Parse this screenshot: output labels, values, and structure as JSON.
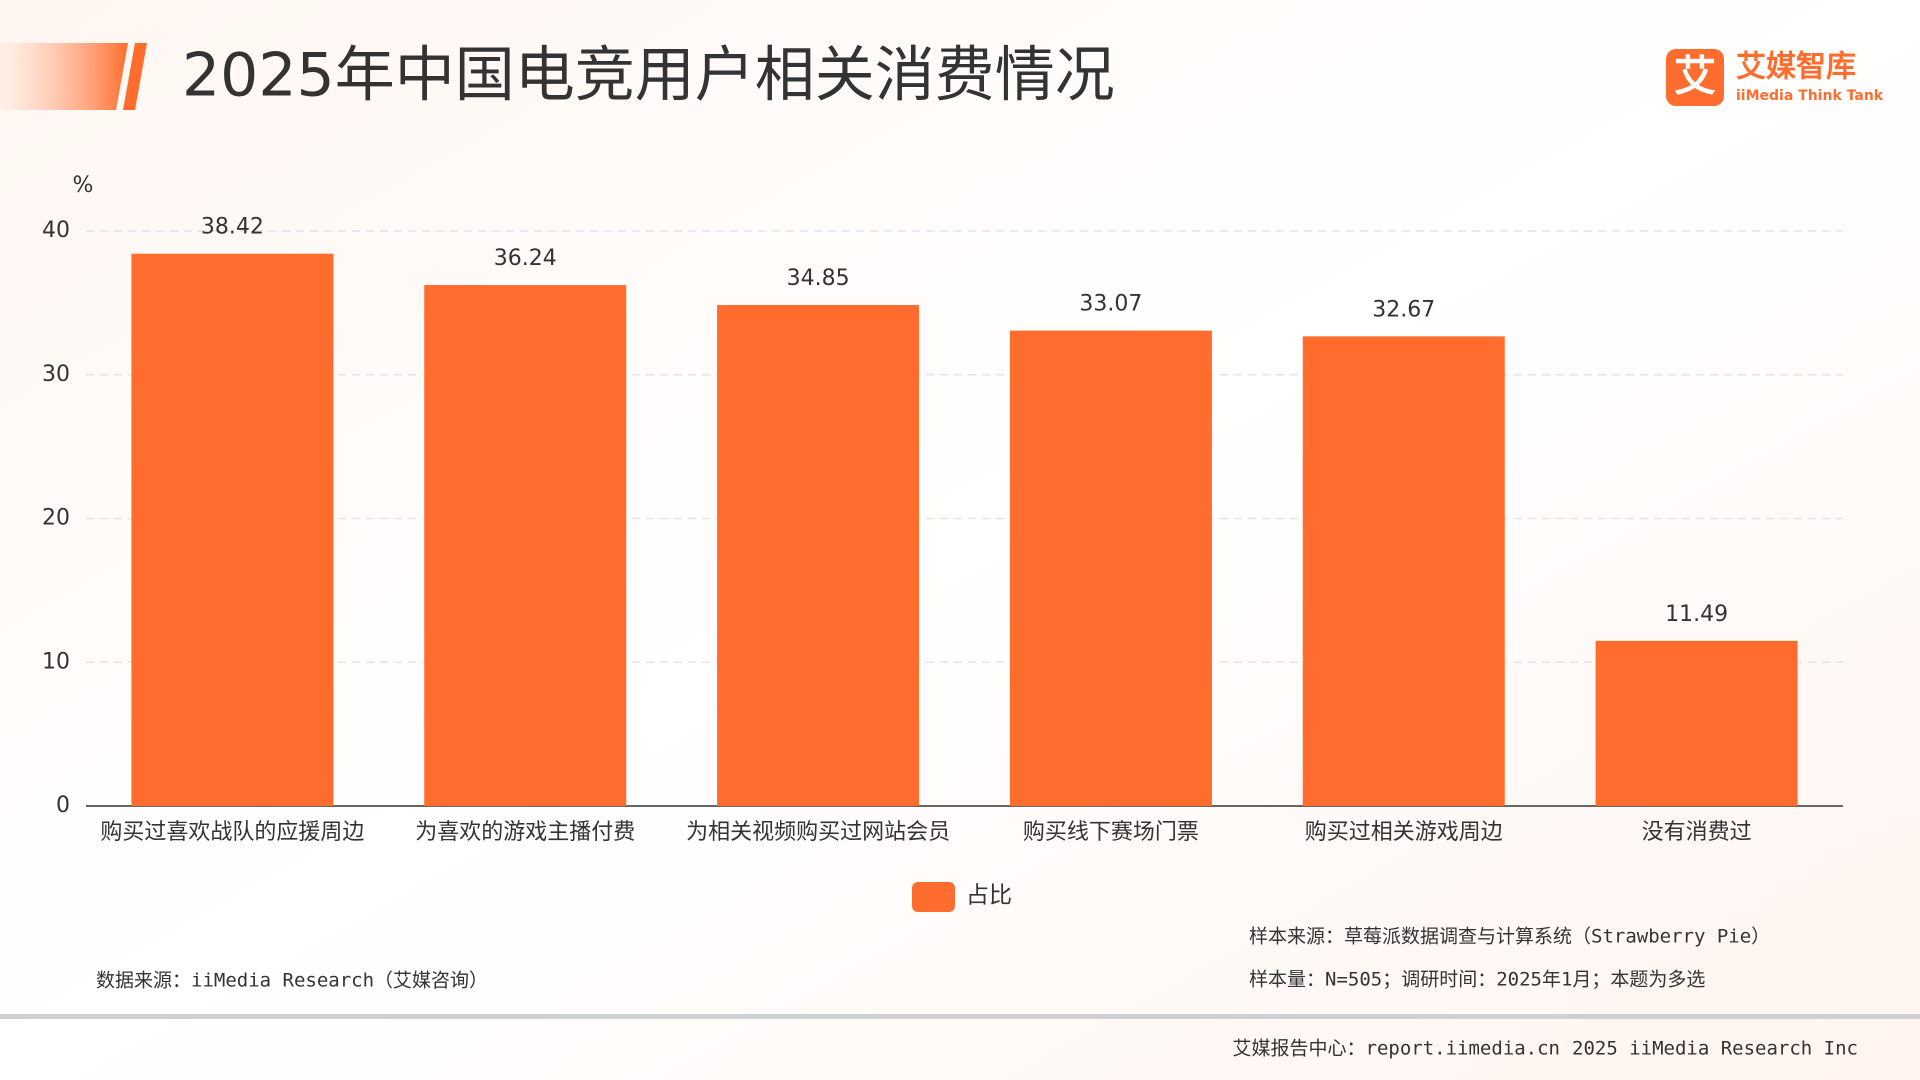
{
  "header": {
    "title": "2025年中国电竞用户相关消费情况"
  },
  "logo": {
    "mark": "艾",
    "name": "艾媒智库",
    "subname": "iiMedia Think Tank"
  },
  "chart_data": {
    "type": "bar",
    "y_label": "%",
    "categories": [
      "购买过喜欢战队的应援周边",
      "为喜欢的游戏主播付费",
      "为相关视频购买过网站会员",
      "购买线下赛场门票",
      "购买过相关游戏周边",
      "没有消费过"
    ],
    "series": [
      {
        "name": "占比",
        "color": "#ff6d2e",
        "values": [
          38.42,
          36.24,
          34.85,
          33.07,
          32.67,
          11.49
        ]
      }
    ],
    "ylim": [
      0,
      40
    ],
    "yticks": [
      0,
      10,
      20,
      30,
      40
    ],
    "grid": true,
    "legend": "bottom"
  },
  "notes": {
    "sample_source": "样本来源：草莓派数据调查与计算系统（Strawberry Pie）",
    "sample_size": "样本量：N=505；调研时间：2025年1月；本题为多选",
    "data_source": "数据来源：iiMedia Research（艾媒咨询）"
  },
  "footer": {
    "center": "艾媒报告中心：report.iimedia.cn",
    "copyright": "2025 iiMedia Research Inc"
  }
}
